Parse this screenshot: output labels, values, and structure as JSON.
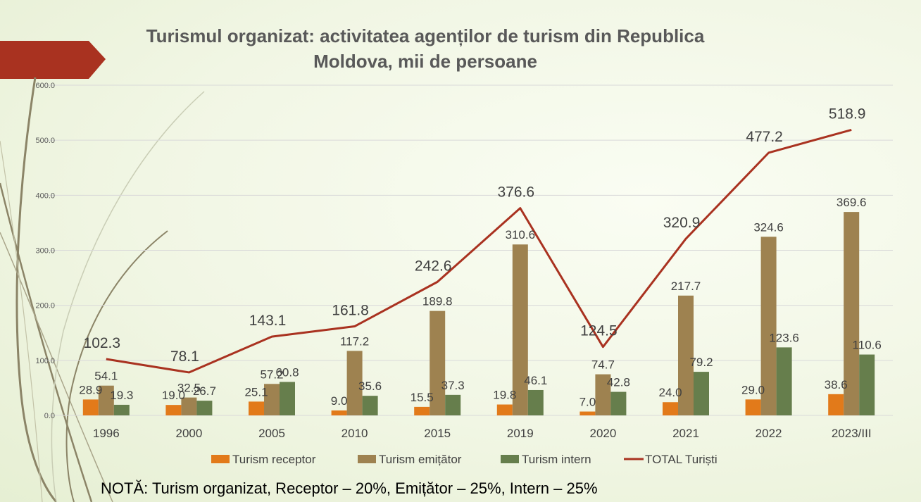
{
  "colors": {
    "accent_bar": "#A93220",
    "receptor": "#E27A1A",
    "emitator": "#9E8250",
    "intern": "#667E4C",
    "total": "#A93220",
    "grid": "#D9D9D9",
    "axis_text": "#595959"
  },
  "chart_data": {
    "type": "bar+line",
    "title": "Turismul organizat: activitatea agenților de turism din Republica Moldova, mii de persoane",
    "title_lines": [
      "Turismul organizat: activitatea agenților de turism din Republica",
      "Moldova, mii de persoane"
    ],
    "categories": [
      "1996",
      "2000",
      "2005",
      "2010",
      "2015",
      "2019",
      "2020",
      "2021",
      "2022",
      "2023/III"
    ],
    "ylim": [
      0,
      600
    ],
    "yticks": [
      "0.0",
      "100.0",
      "200.0",
      "300.0",
      "400.0",
      "500.0",
      "600.0"
    ],
    "grid": true,
    "legend_position": "bottom",
    "series": [
      {
        "name": "Turism receptor",
        "kind": "bar",
        "color": "#E27A1A",
        "values": [
          28.9,
          19.0,
          25.1,
          9.0,
          15.5,
          19.8,
          7.0,
          24.0,
          29.0,
          38.6
        ],
        "labels": [
          "28.9",
          "19.0",
          "25.1",
          "9.0",
          "15.5",
          "19.8",
          "7.0",
          "24.0",
          "29.0",
          "38.6"
        ]
      },
      {
        "name": "Turism emițător",
        "kind": "bar",
        "color": "#9E8250",
        "values": [
          54.1,
          32.5,
          57.2,
          117.2,
          189.8,
          310.6,
          74.7,
          217.7,
          324.6,
          369.6
        ],
        "labels": [
          "54.1",
          "32.5",
          "57.2",
          "117.2",
          "189.8",
          "310.6",
          "74.7",
          "217.7",
          "324.6",
          "369.6"
        ]
      },
      {
        "name": "Turism intern",
        "kind": "bar",
        "color": "#667E4C",
        "values": [
          19.3,
          26.7,
          60.8,
          35.6,
          37.3,
          46.1,
          42.8,
          79.2,
          123.6,
          110.6
        ],
        "labels": [
          "19.3",
          "26.7",
          "60.8",
          "35.6",
          "37.3",
          "46.1",
          "42.8",
          "79.2",
          "123.6",
          "110.6"
        ]
      },
      {
        "name": "TOTAL Turiști",
        "kind": "line",
        "color": "#A93220",
        "values": [
          102.3,
          78.1,
          143.1,
          161.8,
          242.6,
          376.6,
          124.5,
          320.9,
          477.2,
          518.9
        ],
        "labels": [
          "102.3",
          "78.1",
          "143.1",
          "161.8",
          "242.6",
          "376.6",
          "124.5",
          "320.9",
          "477.2",
          "518.9"
        ]
      }
    ]
  },
  "note": "NOTĂ: Turism organizat, Receptor – 20%, Emițător – 25%, Intern – 25%"
}
